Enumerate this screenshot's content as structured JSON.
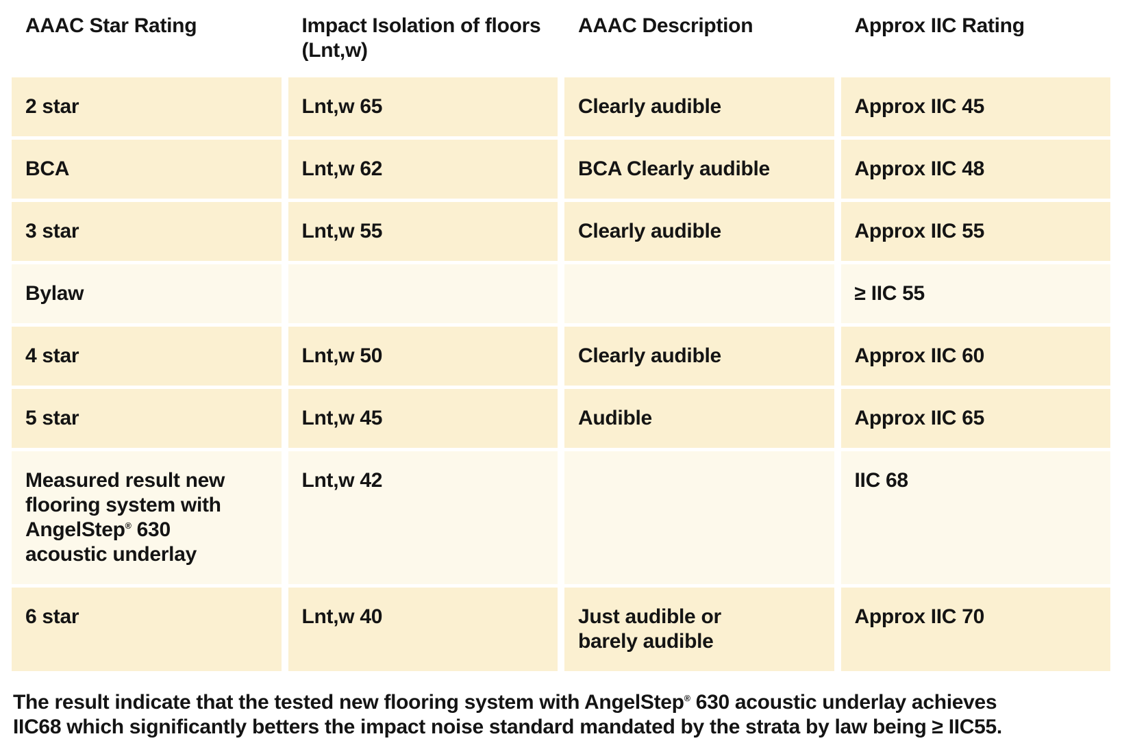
{
  "colors": {
    "row_cream": "#fbf0d1",
    "row_light": "#fdf9eb",
    "text": "#141414",
    "page_bg": "#ffffff"
  },
  "table": {
    "headers": [
      "AAAC Star Rating",
      "Impact Isolation of floors\n(Lnt,w)",
      "AAAC Description",
      "Approx IIC Rating"
    ],
    "rows": [
      {
        "cells": [
          "2 star",
          "Lnt,w 65",
          "Clearly audible",
          "Approx IIC 45"
        ]
      },
      {
        "cells": [
          "BCA",
          "Lnt,w 62",
          "BCA Clearly audible",
          "Approx IIC 48"
        ]
      },
      {
        "cells": [
          "3 star",
          "Lnt,w 55",
          "Clearly audible",
          "Approx IIC 55"
        ]
      },
      {
        "cells": [
          "Bylaw",
          "",
          "",
          "≥ IIC 55"
        ]
      },
      {
        "cells": [
          "4 star",
          "Lnt,w 50",
          "Clearly audible",
          "Approx IIC 60"
        ]
      },
      {
        "cells": [
          "5 star",
          "Lnt,w 45",
          "Audible",
          "Approx IIC 65"
        ]
      },
      {
        "cells": [
          "Measured result new\nflooring system with\nAngelStep® 630\nacoustic underlay",
          "Lnt,w 42",
          "",
          "IIC 68"
        ]
      },
      {
        "cells": [
          "6 star",
          "Lnt,w 40",
          "Just audible or\nbarely audible",
          "Approx IIC 70"
        ]
      }
    ]
  },
  "footer": {
    "text": "The result indicate that the tested new flooring system with AngelStep® 630 acoustic underlay achieves\nIIC68 which significantly betters the impact noise standard mandated by the strata by law being ≥ IIC55."
  }
}
